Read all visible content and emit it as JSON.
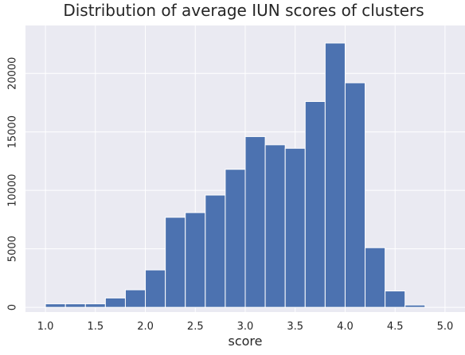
{
  "chart_data": {
    "type": "bar",
    "title": "Distribution of average IUN scores of clusters",
    "xlabel": "score",
    "ylabel": "",
    "bin_edges": [
      1.0,
      1.2,
      1.4,
      1.6,
      1.8,
      2.0,
      2.2,
      2.4,
      2.6,
      2.8,
      3.0,
      3.2,
      3.4,
      3.6,
      3.8,
      4.0,
      4.2,
      4.4,
      4.6,
      4.8,
      5.0
    ],
    "values": [
      300,
      300,
      300,
      800,
      1500,
      3200,
      7700,
      8100,
      9600,
      11800,
      14600,
      13900,
      13600,
      17600,
      22600,
      19200,
      5100,
      1400,
      200,
      0
    ],
    "xlim": [
      0.8,
      5.2
    ],
    "ylim": [
      -400,
      24100
    ],
    "xticks": [
      1.0,
      1.5,
      2.0,
      2.5,
      3.0,
      3.5,
      4.0,
      4.5,
      5.0
    ],
    "xtick_labels": [
      "1.0",
      "1.5",
      "2.0",
      "2.5",
      "3.0",
      "3.5",
      "4.0",
      "4.5",
      "5.0"
    ],
    "yticks": [
      0,
      5000,
      10000,
      15000,
      20000
    ],
    "ytick_labels": [
      "0",
      "5000",
      "10000",
      "15000",
      "20000"
    ],
    "grid": true,
    "colors": {
      "bar": "#4c72b0",
      "background": "#eaeaf2",
      "grid": "#ffffff",
      "text": "#262626"
    }
  }
}
